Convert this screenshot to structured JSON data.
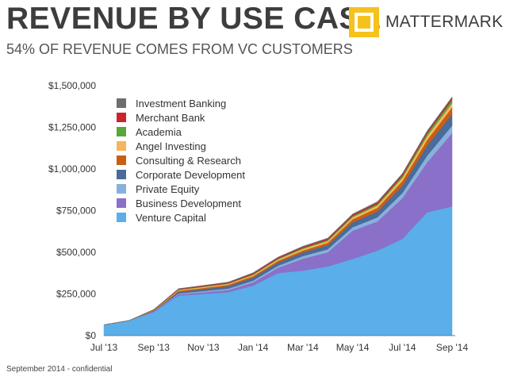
{
  "header": {
    "title": "REVENUE BY USE CASE",
    "subtitle": "54% OF REVENUE COMES FROM VC CUSTOMERS",
    "logo_text": "MATTERMARK"
  },
  "footer": {
    "text": "September 2014 - confidential"
  },
  "chart_data": {
    "type": "area",
    "stacked": true,
    "title": "",
    "xlabel": "",
    "ylabel": "",
    "ylim": [
      0,
      1500000
    ],
    "y_ticks": [
      0,
      250000,
      500000,
      750000,
      1000000,
      1250000,
      1500000
    ],
    "y_tick_labels": [
      "$0",
      "$250,000",
      "$500,000",
      "$750,000",
      "$1,000,000",
      "$1,250,000",
      "$1,500,000"
    ],
    "x": [
      "Jul '13",
      "Aug '13",
      "Sep '13",
      "Oct '13",
      "Nov '13",
      "Dec '13",
      "Jan '14",
      "Feb '14",
      "Mar '14",
      "Apr '14",
      "May '14",
      "Jun '14",
      "Jul '14",
      "Aug '14",
      "Sep '14"
    ],
    "x_tick_labels": [
      "Jul '13",
      "Sep '13",
      "Nov '13",
      "Jan '14",
      "Mar '14",
      "May '14",
      "Jul '14",
      "Sep '14"
    ],
    "x_tick_positions": [
      0,
      2,
      4,
      6,
      8,
      10,
      12,
      14
    ],
    "legend_position": "top-left",
    "grid": false,
    "series": [
      {
        "name": "Venture Capital",
        "color": "#5aaeea",
        "values": [
          65000,
          90000,
          140000,
          240000,
          250000,
          260000,
          300000,
          375000,
          390000,
          415000,
          460000,
          510000,
          580000,
          740000,
          775000
        ]
      },
      {
        "name": "Business Development",
        "color": "#8a70c8",
        "values": [
          0,
          0,
          3000,
          8000,
          10000,
          14000,
          20000,
          32000,
          72000,
          85000,
          170000,
          175000,
          245000,
          300000,
          440000
        ]
      },
      {
        "name": "Private Equity",
        "color": "#87b1dc",
        "values": [
          0,
          0,
          2000,
          5000,
          7000,
          8000,
          10000,
          12000,
          15000,
          18000,
          20000,
          25000,
          30000,
          40000,
          45000
        ]
      },
      {
        "name": "Corporate Development",
        "color": "#4a6b9b",
        "values": [
          0,
          0,
          3000,
          10000,
          12000,
          15000,
          18000,
          20000,
          22000,
          25000,
          30000,
          35000,
          45000,
          60000,
          70000
        ]
      },
      {
        "name": "Consulting & Research",
        "color": "#c95e12",
        "values": [
          0,
          0,
          2000,
          6000,
          7000,
          8000,
          9000,
          10000,
          12000,
          14000,
          18000,
          22000,
          28000,
          35000,
          40000
        ]
      },
      {
        "name": "Angel Investing",
        "color": "#f5b65f",
        "values": [
          0,
          0,
          2000,
          5000,
          6000,
          6000,
          7000,
          8000,
          9000,
          10000,
          12000,
          14000,
          18000,
          22000,
          25000
        ]
      },
      {
        "name": "Academia",
        "color": "#5aa63b",
        "values": [
          0,
          0,
          1000,
          2000,
          3000,
          3000,
          4000,
          5000,
          6000,
          7000,
          8000,
          9000,
          12000,
          16000,
          20000
        ]
      },
      {
        "name": "Merchant Bank",
        "color": "#c8262b",
        "values": [
          0,
          0,
          2000,
          4000,
          4000,
          5000,
          6000,
          6000,
          7000,
          7000,
          8000,
          9000,
          10000,
          10000,
          12000
        ]
      },
      {
        "name": "Investment Banking",
        "color": "#6e6e6e",
        "values": [
          0,
          0,
          1000,
          2000,
          2000,
          2000,
          3000,
          3000,
          3000,
          4000,
          4000,
          5000,
          5000,
          6000,
          6000
        ]
      }
    ]
  }
}
